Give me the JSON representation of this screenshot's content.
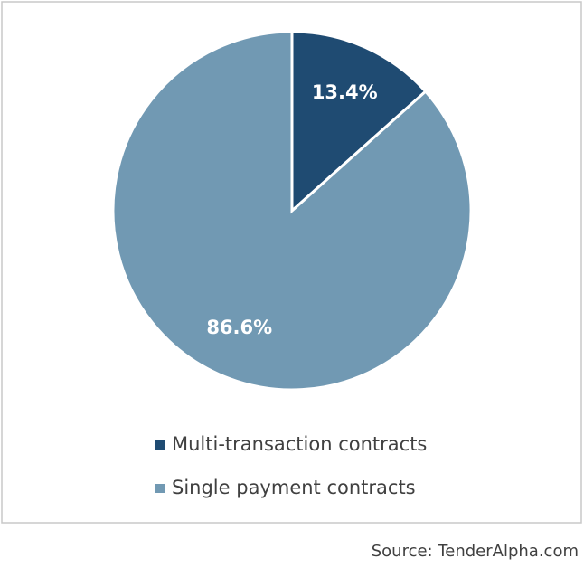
{
  "chart_data": {
    "type": "pie",
    "categories": [
      "Multi-transaction contracts",
      "Single payment contracts"
    ],
    "values": [
      13.4,
      86.6
    ],
    "value_labels": [
      "13.4%",
      "86.6%"
    ],
    "colors": [
      "#1f4b72",
      "#7199b3"
    ],
    "source": "Source: TenderAlpha.com"
  }
}
